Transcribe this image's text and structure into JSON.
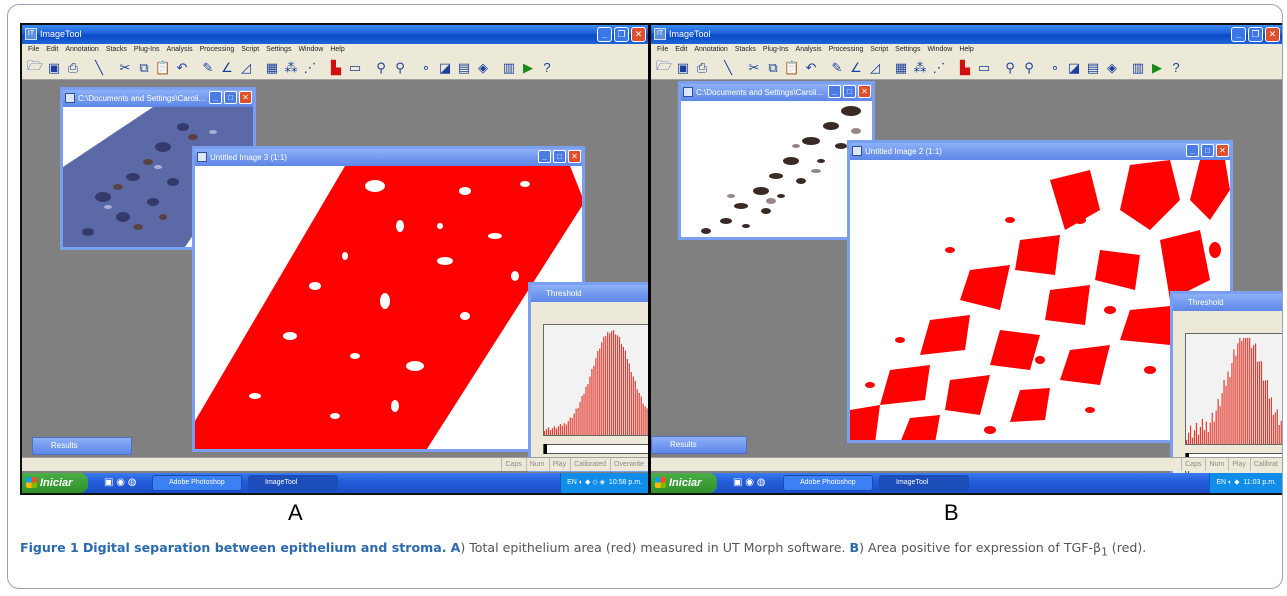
{
  "app": {
    "title": "ImageTool",
    "menu": [
      "File",
      "Edit",
      "Annotation",
      "Stacks",
      "Plug-Ins",
      "Analysis",
      "Processing",
      "Script",
      "Settings",
      "Window",
      "Help"
    ]
  },
  "panel_a": {
    "label": "A",
    "source_window_title": "C:\\Documents and Settings\\Caroli...",
    "image_window_title": "Untitled Image 3 (1:1)",
    "threshold_title": "Threshold",
    "threshold_value": "0",
    "results_title": "Results",
    "status": [
      "Caps",
      "Num",
      "Play",
      "Calibrated",
      "Overwrite"
    ],
    "taskbar": {
      "start": "Iniciar",
      "tasks": [
        "Adobe Photoshop",
        "ImageTool"
      ],
      "tray_lang": "EN",
      "clock": "10:58 p.m."
    }
  },
  "panel_b": {
    "label": "B",
    "source_window_title": "C:\\Documents and Settings\\Caroli...",
    "image_window_title": "Untitled Image 2 (1:1)",
    "threshold_title": "Threshold",
    "threshold_value": "0",
    "results_title": "Results",
    "status": [
      "Caps",
      "Num",
      "Play",
      "Calibrat"
    ],
    "taskbar": {
      "start": "Iniciar",
      "tasks": [
        "Adobe Photoshop",
        "ImageTool"
      ],
      "tray_lang": "EN",
      "clock": "11:03 p.m."
    }
  },
  "caption": {
    "figure_label": "Figure 1",
    "title": "Digital separation between epithelium and stroma.",
    "part_a_label": "A",
    "part_a_text": ") Total epithelium area (red) measured in UT Morph software.",
    "part_b_label": "B",
    "part_b_text_1": ") Area positive for expression of TGF-β",
    "part_b_sub": "1",
    "part_b_text_2": " (red)."
  },
  "colors": {
    "mask_red": "#ff0000",
    "xp_blue": "#1b5fd6",
    "caption_blue": "#2b6aaf"
  }
}
